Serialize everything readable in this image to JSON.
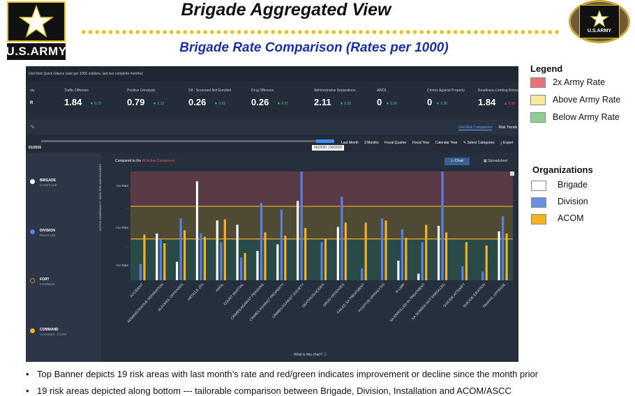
{
  "header": {
    "title": "Brigade Aggregated View",
    "subtitle": "Brigade Rate Comparison (Rates per 1000)",
    "logo_left_text": "U.S.ARMY",
    "logo_right_text": "U.S.ARMY",
    "accent_color": "#e7c21a",
    "subtitle_color": "#1b2fa8"
  },
  "dashboard": {
    "panel_title": "Unit Risk Quick Glance (rate per 1000 soldiers, last two complete months)",
    "first_cell": "ety",
    "first_marker": "R",
    "kpis": [
      {
        "label": "Traffic Offenses",
        "value": "1.84",
        "delta": "▼ 0.79",
        "trend": "up"
      },
      {
        "label": "Positive Urinalysis",
        "value": "0.79",
        "delta": "▼ 0.12",
        "trend": "up"
      },
      {
        "label": "SA - Screened Not Enrolled",
        "value": "0.26",
        "delta": "▼ 0.53",
        "trend": "up"
      },
      {
        "label": "Drug Offenses",
        "value": "0.26",
        "delta": "▼ 0.27",
        "trend": "up"
      },
      {
        "label": "Administrative Separations",
        "value": "2.11",
        "delta": "▼ 0.26",
        "trend": "up"
      },
      {
        "label": "AWOL",
        "value": "0",
        "delta": "▼ 0.26",
        "trend": "up"
      },
      {
        "label": "Crimes Against Property",
        "value": "0",
        "delta": "▼ 0.26",
        "trend": "up"
      },
      {
        "label": "Readiness-Limiting Behav",
        "value": "1.84",
        "delta": "▲ 0.26",
        "trend": "down"
      }
    ],
    "tabs": [
      "Unit Risk Comparison",
      "Risk Trends"
    ],
    "date_start": "01/2015",
    "date_range": "06/2020 | 09/2020",
    "filters": [
      "Last Month",
      "3 Months",
      "Fiscal Quarter",
      "Fiscal Year",
      "Calendar Year",
      "✎ Select Categories",
      "⤓ Export"
    ],
    "compare_prefix": "Compared to the",
    "compare_highlight": "All Active Component",
    "btn_chart": "▭ Chart",
    "btn_spreadsheet": "▦ Spreadsheet",
    "y_axis_label": "ACTIVE COMPONENT · RATE PER 1000 SOLDIERS",
    "what_is": "What is this chart? ⓘ",
    "orgs": [
      {
        "name": "BRIGADE",
        "sub": "Current Unit",
        "color": "#ffffff"
      },
      {
        "name": "DIVISION",
        "sub": "Parent Unit",
        "color": "#5b7fe0"
      },
      {
        "name": "FORT",
        "sub": "Installation",
        "color": "#e8742a"
      },
      {
        "name": "COMMAND",
        "sub": "Command - ACOM",
        "color": "#f2b12b"
      }
    ]
  },
  "chart_data": {
    "type": "bar",
    "y_tick_labels": [
      ">2x Rate",
      "-",
      ">1x Rate",
      "-",
      "<1x Rate"
    ],
    "zones": {
      "red": "#5a3a44",
      "yellow": "#4f4a33",
      "green": "#2a4a47"
    },
    "reference_lines": [
      {
        "value": 0.68,
        "color": "#f2b12b"
      },
      {
        "value": 0.38,
        "color": "#f2b12b"
      }
    ],
    "ylim": [
      0,
      1
    ],
    "categories": [
      "ACCIDENT",
      "ADMINISTRATIVE SEPARATION",
      "ALCOHOL OFFENSES",
      "ARTICLE 15S",
      "AWOL",
      "COURT MARTIAL",
      "CRIMES AGAINST PERSONS",
      "CRIMES AGAINST PROPERTY",
      "CRIMES AGAINST SOCIETY",
      "DEATHS/SUICIDES",
      "DRUG OFFENSES",
      "FAILED SA TREATMENT",
      "POSITIVE URINALYSIS",
      "R-LIMP",
      "SA ENROLLED IN TREATMENT",
      "SA SCREEN NOT ENROLLED",
      "SUICIDE ATTEMPT",
      "SUICIDE IDEATION",
      "TRAFFIC OFFENSE"
    ],
    "series": [
      {
        "name": "Brigade",
        "color": "#ffffff",
        "values": [
          0.0,
          0.43,
          0.17,
          0.91,
          0.55,
          0.51,
          0.27,
          0.33,
          0.73,
          0.0,
          0.49,
          0.0,
          0.0,
          0.18,
          0.06,
          0.5,
          0.0,
          0.0,
          0.45
        ]
      },
      {
        "name": "Division",
        "color": "#5b7fe0",
        "values": [
          0.15,
          0.38,
          0.57,
          0.43,
          0.35,
          0.21,
          0.71,
          0.65,
          1.0,
          0.35,
          0.77,
          0.11,
          0.57,
          0.47,
          0.35,
          1.0,
          0.13,
          0.08,
          0.59
        ]
      },
      {
        "name": "ACOM",
        "color": "#f2b12b",
        "values": [
          0.42,
          0.34,
          0.46,
          0.4,
          0.56,
          0.25,
          0.44,
          0.41,
          0.48,
          0.38,
          0.53,
          0.53,
          0.55,
          0.39,
          0.51,
          0.44,
          0.35,
          0.32,
          0.43
        ]
      }
    ]
  },
  "legend": {
    "title": "Legend",
    "items": [
      {
        "label": "2x Army Rate",
        "color": "#e8727a"
      },
      {
        "label": "Above Army Rate",
        "color": "#f7eaa0"
      },
      {
        "label": "Below Army Rate",
        "color": "#8fcf8e"
      }
    ]
  },
  "organizations": {
    "title": "Organizations",
    "items": [
      {
        "label": "Brigade",
        "color": "#ffffff"
      },
      {
        "label": "Division",
        "color": "#6c8ee0"
      },
      {
        "label": "ACOM",
        "color": "#f2b41e"
      }
    ]
  },
  "bullets": [
    "Top Banner depicts 19 risk areas with last month’s rate and red/green indicates improvement or decline since the month prior",
    "19 risk areas depicted along bottom --- tailorable comparison between Brigade, Division, Installation and ACOM/ASCC"
  ]
}
